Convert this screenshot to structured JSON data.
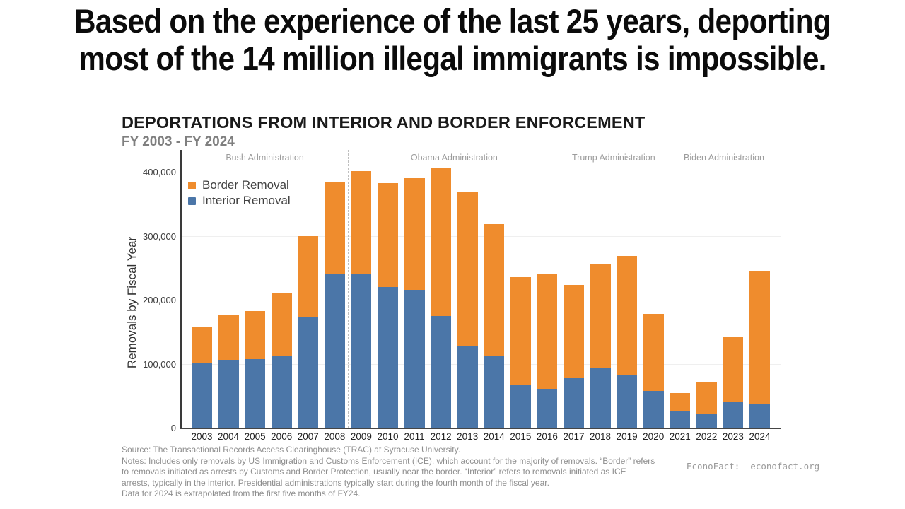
{
  "headline": {
    "lines": [
      "Based on the experience of the last 25 years, deporting",
      "most of the 14 million illegal immigrants is impossible."
    ]
  },
  "chart_data": {
    "type": "bar",
    "stacked": true,
    "title": "DEPORTATIONS FROM INTERIOR AND BORDER ENFORCEMENT",
    "subtitle": "FY 2003 - FY 2024",
    "ylabel": "Removals by Fiscal Year",
    "xlabel": "",
    "ylim": [
      0,
      400000
    ],
    "grid": true,
    "legend_position": "top-left",
    "yticks": [
      {
        "value": 0,
        "label": "0"
      },
      {
        "value": 100000,
        "label": "100,000"
      },
      {
        "value": 200000,
        "label": "200,000"
      },
      {
        "value": 300000,
        "label": "300,000"
      },
      {
        "value": 400000,
        "label": "400,000"
      }
    ],
    "categories": [
      "2003",
      "2004",
      "2005",
      "2006",
      "2007",
      "2008",
      "2009",
      "2010",
      "2011",
      "2012",
      "2013",
      "2014",
      "2015",
      "2016",
      "2017",
      "2018",
      "2019",
      "2020",
      "2021",
      "2022",
      "2023",
      "2024"
    ],
    "series": [
      {
        "name": "Interior Removal",
        "color": "#4b76a8",
        "values": [
          101000,
          106000,
          107000,
          112000,
          173000,
          241000,
          241000,
          220000,
          216000,
          175000,
          128000,
          113000,
          67000,
          61000,
          78000,
          94000,
          83000,
          58000,
          25000,
          22000,
          40000,
          37000
        ]
      },
      {
        "name": "Border Removal",
        "color": "#ef8c2d",
        "values": [
          57000,
          70000,
          75000,
          99000,
          127000,
          144000,
          160000,
          162000,
          174000,
          232000,
          240000,
          205000,
          168000,
          179000,
          145000,
          162000,
          186000,
          120000,
          29000,
          49000,
          103000,
          208000
        ]
      }
    ],
    "legend": [
      {
        "label": "Border Removal",
        "color": "#ef8c2d"
      },
      {
        "label": "Interior Removal",
        "color": "#4b76a8"
      }
    ],
    "administrations": [
      {
        "label": "Bush Administration",
        "from": "2003",
        "to": "2008"
      },
      {
        "label": "Obama Administration",
        "from": "2009",
        "to": "2016"
      },
      {
        "label": "Trump Administration",
        "from": "2017",
        "to": "2020"
      },
      {
        "label": "Biden Administration",
        "from": "2021",
        "to": "2024"
      }
    ]
  },
  "notes": {
    "lines": [
      "Source: The Transactional Records Access Clearinghouse (TRAC) at Syracuse University.",
      "Notes: Includes only removals by US Immigration and Customs Enforcement (ICE), which account for the majority of removals. “Border” refers",
      "to removals initiated as arrests by Customs and Border Protection, usually near the border. “Interior” refers to removals initiated as ICE",
      "arrests, typically in the interior. Presidential administrations typically start during the fourth month of the fiscal year.",
      "Data for 2024 is extrapolated from the first five months of FY24."
    ]
  },
  "credit": "EconoFact:  econofact.org"
}
